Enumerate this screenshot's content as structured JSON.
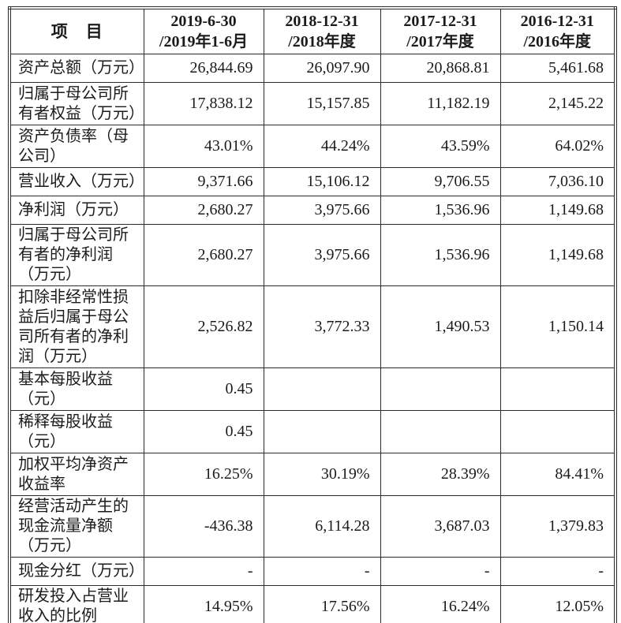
{
  "table": {
    "item_header": "项　目",
    "columns": [
      "2019-6-30\n/2019年1-6月",
      "2018-12-31\n/2018年度",
      "2017-12-31\n/2017年度",
      "2016-12-31\n/2016年度"
    ],
    "rows": [
      {
        "item": "资产总额（万元）",
        "values": [
          "26,844.69",
          "26,097.90",
          "20,868.81",
          "5,461.68"
        ]
      },
      {
        "item": "归属于母公司所\n有者权益（万元）",
        "values": [
          "17,838.12",
          "15,157.85",
          "11,182.19",
          "2,145.22"
        ]
      },
      {
        "item": "资产负债率（母\n公司）",
        "values": [
          "43.01%",
          "44.24%",
          "43.59%",
          "64.02%"
        ]
      },
      {
        "item": "营业收入（万元）",
        "values": [
          "9,371.66",
          "15,106.12",
          "9,706.55",
          "7,036.10"
        ]
      },
      {
        "item": "净利润（万元）",
        "values": [
          "2,680.27",
          "3,975.66",
          "1,536.96",
          "1,149.68"
        ]
      },
      {
        "item": "归属于母公司所\n有者的净利润\n（万元）",
        "values": [
          "2,680.27",
          "3,975.66",
          "1,536.96",
          "1,149.68"
        ]
      },
      {
        "item": "扣除非经常性损\n益后归属于母公\n司所有者的净利\n润（万元）",
        "values": [
          "2,526.82",
          "3,772.33",
          "1,490.53",
          "1,150.14"
        ]
      },
      {
        "item": "基本每股收益\n（元）",
        "values": [
          "0.45",
          "",
          "",
          ""
        ]
      },
      {
        "item": "稀释每股收益\n（元）",
        "values": [
          "0.45",
          "",
          "",
          ""
        ]
      },
      {
        "item": "加权平均净资产\n收益率",
        "values": [
          "16.25%",
          "30.19%",
          "28.39%",
          "84.41%"
        ]
      },
      {
        "item": "经营活动产生的\n现金流量净额\n（万元）",
        "values": [
          "-436.38",
          "6,114.28",
          "3,687.03",
          "1,379.83"
        ]
      },
      {
        "item": "现金分红（万元）",
        "values": [
          "-",
          "-",
          "-",
          "-"
        ]
      },
      {
        "item": "研发投入占营业\n收入的比例",
        "values": [
          "14.95%",
          "17.56%",
          "16.24%",
          "12.05%"
        ]
      }
    ]
  }
}
